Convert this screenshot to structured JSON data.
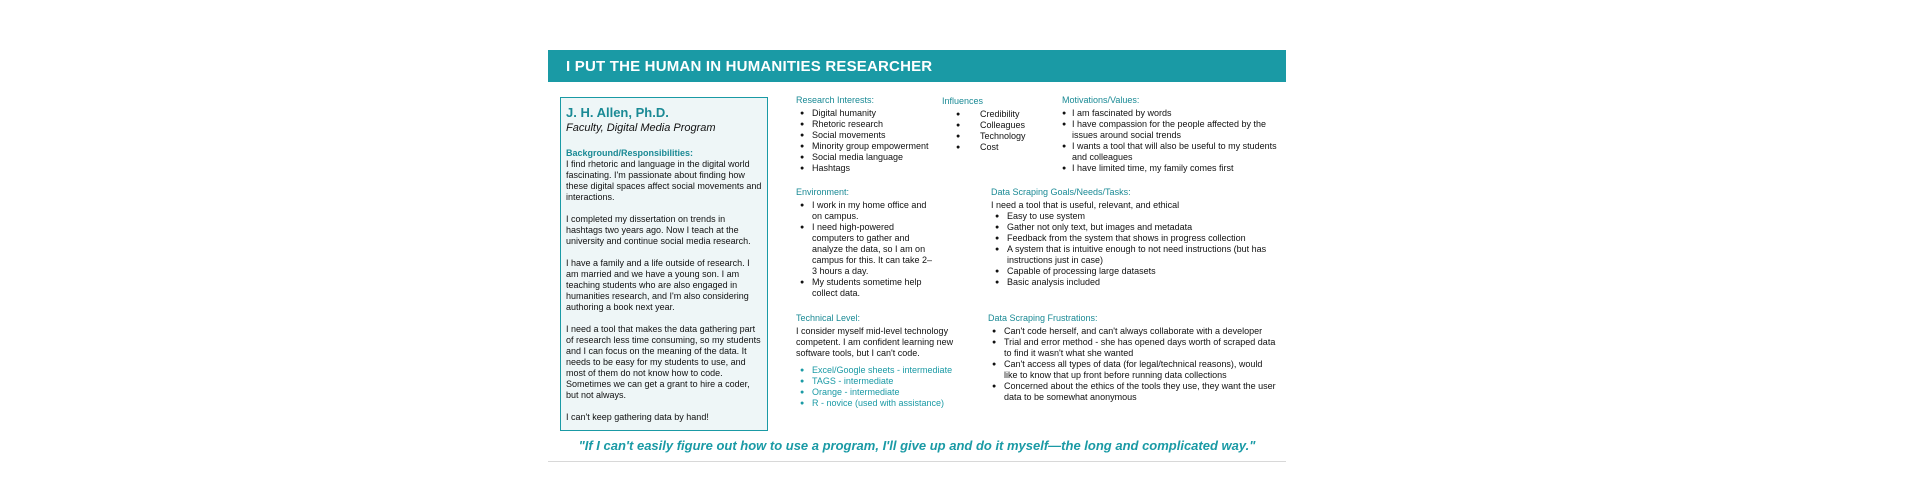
{
  "header": {
    "title": "I PUT THE HUMAN IN HUMANITIES RESEARCHER"
  },
  "bio": {
    "name": "J. H. Allen, Ph.D.",
    "role": "Faculty, Digital Media Program",
    "heading": "Background/Responsibilities:",
    "paragraphs": [
      "I find rhetoric and language in the digital world fascinating. I'm passionate about finding how these digital spaces affect social movements and interactions.",
      "I completed my dissertation on trends in hashtags two years ago. Now I teach at the university and continue social media research.",
      "I have a family and a life outside of research. I am married and we have a young son. I am teaching students who are also engaged in humanities research, and I'm also considering authoring a book next year.",
      "I need a tool that makes the data gathering part of research less time consuming, so my students and I can focus on the meaning of the data. It needs to be easy for my students to use, and most of them do not know how to code. Sometimes we can get a grant to hire a coder, but not always.",
      "I can't keep gathering data by hand!"
    ]
  },
  "research": {
    "heading": "Research Interests:",
    "items": [
      "Digital humanity",
      "Rhetoric research",
      "Social movements",
      "Minority group empowerment",
      "Social media language",
      "Hashtags"
    ]
  },
  "influences": {
    "heading": "Influences",
    "items": [
      "Credibility",
      "Colleagues",
      "Technology",
      "Cost"
    ]
  },
  "motivations": {
    "heading": "Motivations/Values:",
    "items": [
      "I am fascinated by words",
      "I have compassion for the people affected by the issues around social trends",
      "I wants a tool that will also be useful to my students and colleagues",
      "I have limited time, my family comes first"
    ]
  },
  "environment": {
    "heading": "Environment:",
    "items": [
      "I work in my home office and on campus.",
      "I need high-powered computers to gather and analyze the data, so I am on campus for this. It can take 2–3 hours a day.",
      "My students sometime help collect data."
    ]
  },
  "goals": {
    "heading": "Data Scraping Goals/Needs/Tasks:",
    "intro": "I need a tool that is useful, relevant, and ethical",
    "items": [
      "Easy to use system",
      "Gather not only text, but images and metadata",
      "Feedback from the system that shows in progress collection",
      "A system that is intuitive enough to not need instructions (but has instructions just in case)",
      "Capable of processing large datasets",
      "Basic analysis included"
    ]
  },
  "technical": {
    "heading": "Technical Level:",
    "intro": "I consider myself mid-level technology competent. I am confident  learning new software tools, but I can't code.",
    "items": [
      "Excel/Google sheets - intermediate",
      "TAGS - intermediate",
      "Orange - intermediate",
      "R - novice (used with assistance)"
    ]
  },
  "frustrations": {
    "heading": "Data Scraping Frustrations:",
    "items": [
      "Can't code herself, and can't always collaborate with a developer",
      "Trial and error method - she has opened days worth of scraped data to find it wasn't what she wanted",
      "Can't access all types of data (for legal/technical reasons), would like to know that up front before running data collections",
      "Concerned about the ethics of the tools they use, they want the user data to be somewhat anonymous"
    ]
  },
  "quote": "\"If I can't easily figure out how to use a program, I'll give up and do it myself—the long and complicated way.\"",
  "colors": {
    "accent": "#1a9aa5",
    "heading_text": "#1a8a95",
    "bio_bg": "#eef6f7"
  }
}
